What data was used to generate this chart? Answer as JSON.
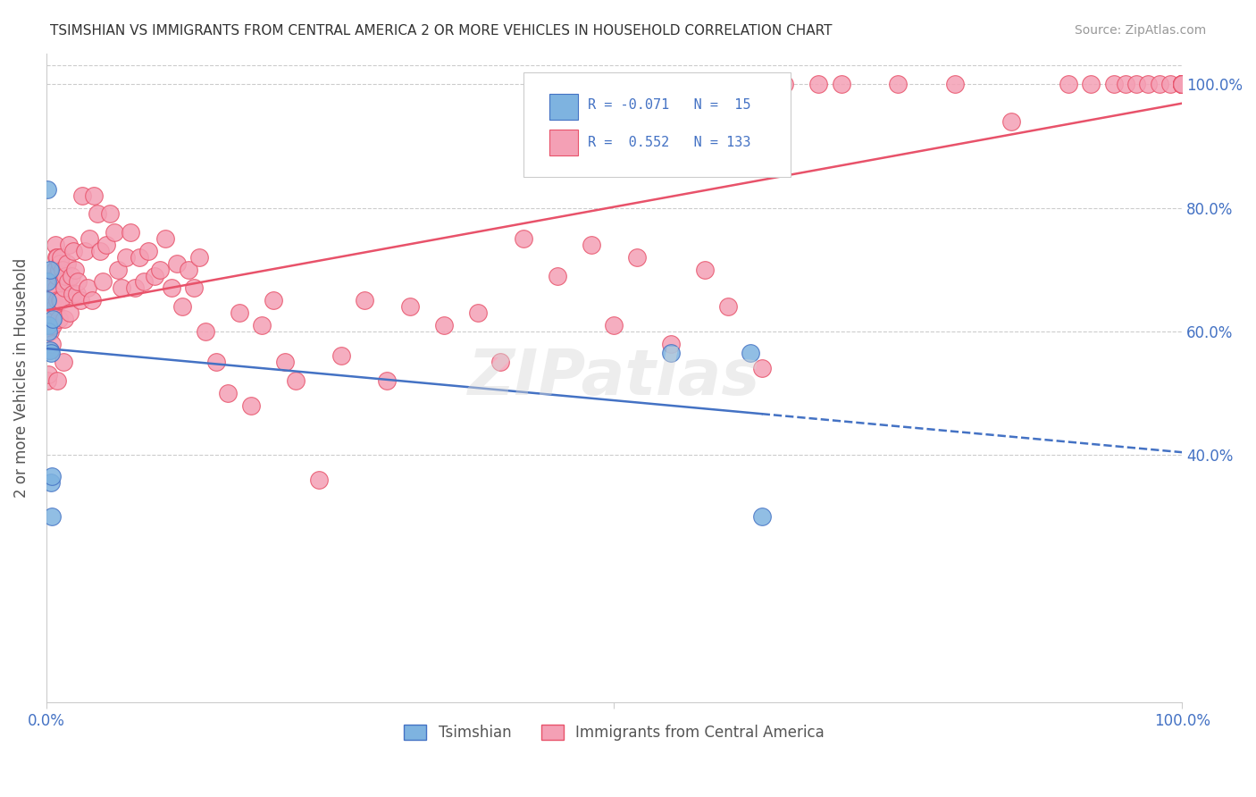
{
  "title": "TSIMSHIAN VS IMMIGRANTS FROM CENTRAL AMERICA 2 OR MORE VEHICLES IN HOUSEHOLD CORRELATION CHART",
  "source": "Source: ZipAtlas.com",
  "ylabel": "2 or more Vehicles in Household",
  "xlim": [
    0.0,
    1.0
  ],
  "ylim": [
    0.0,
    1.05
  ],
  "color_tsimshian": "#7eb3e0",
  "color_immigrants": "#f4a0b5",
  "color_line_tsimshian": "#4472c4",
  "color_line_immigrants": "#e8526a",
  "color_grid": "#cccccc",
  "color_watermark": "#d8d8d8",
  "watermark": "ZIPatlas",
  "background_color": "#ffffff",
  "tsimshian_x": [
    0.001,
    0.001,
    0.001,
    0.002,
    0.002,
    0.003,
    0.003,
    0.004,
    0.004,
    0.005,
    0.005,
    0.006,
    0.55,
    0.62,
    0.63
  ],
  "tsimshian_y": [
    0.83,
    0.68,
    0.65,
    0.61,
    0.6,
    0.7,
    0.57,
    0.565,
    0.355,
    0.365,
    0.3,
    0.62,
    0.565,
    0.565,
    0.3
  ],
  "immigrants_x": [
    0.001,
    0.001,
    0.002,
    0.002,
    0.002,
    0.003,
    0.003,
    0.003,
    0.004,
    0.004,
    0.005,
    0.005,
    0.005,
    0.006,
    0.006,
    0.007,
    0.007,
    0.007,
    0.008,
    0.008,
    0.008,
    0.009,
    0.009,
    0.01,
    0.01,
    0.01,
    0.01,
    0.011,
    0.011,
    0.012,
    0.012,
    0.013,
    0.013,
    0.014,
    0.015,
    0.015,
    0.016,
    0.016,
    0.017,
    0.018,
    0.019,
    0.02,
    0.021,
    0.022,
    0.023,
    0.024,
    0.025,
    0.027,
    0.028,
    0.03,
    0.032,
    0.034,
    0.036,
    0.038,
    0.04,
    0.042,
    0.045,
    0.047,
    0.05,
    0.053,
    0.056,
    0.06,
    0.063,
    0.066,
    0.07,
    0.074,
    0.078,
    0.082,
    0.086,
    0.09,
    0.095,
    0.1,
    0.105,
    0.11,
    0.115,
    0.12,
    0.125,
    0.13,
    0.135,
    0.14,
    0.15,
    0.16,
    0.17,
    0.18,
    0.19,
    0.2,
    0.21,
    0.22,
    0.24,
    0.26,
    0.28,
    0.3,
    0.32,
    0.35,
    0.38,
    0.4,
    0.42,
    0.45,
    0.48,
    0.5,
    0.52,
    0.55,
    0.58,
    0.6,
    0.63,
    0.65,
    0.68,
    0.7,
    0.75,
    0.8,
    0.85,
    0.9,
    0.92,
    0.94,
    0.95,
    0.96,
    0.97,
    0.98,
    0.99,
    1.0,
    1.0,
    1.0,
    1.0,
    1.0,
    1.0,
    1.0,
    1.0,
    1.0,
    1.0,
    1.0,
    1.0,
    1.0,
    1.0
  ],
  "immigrants_y": [
    0.57,
    0.52,
    0.6,
    0.57,
    0.53,
    0.63,
    0.6,
    0.57,
    0.69,
    0.61,
    0.67,
    0.64,
    0.58,
    0.65,
    0.61,
    0.7,
    0.66,
    0.63,
    0.74,
    0.7,
    0.64,
    0.72,
    0.67,
    0.72,
    0.69,
    0.65,
    0.52,
    0.7,
    0.62,
    0.71,
    0.65,
    0.72,
    0.65,
    0.7,
    0.68,
    0.55,
    0.67,
    0.62,
    0.69,
    0.71,
    0.68,
    0.74,
    0.63,
    0.69,
    0.66,
    0.73,
    0.7,
    0.66,
    0.68,
    0.65,
    0.82,
    0.73,
    0.67,
    0.75,
    0.65,
    0.82,
    0.79,
    0.73,
    0.68,
    0.74,
    0.79,
    0.76,
    0.7,
    0.67,
    0.72,
    0.76,
    0.67,
    0.72,
    0.68,
    0.73,
    0.69,
    0.7,
    0.75,
    0.67,
    0.71,
    0.64,
    0.7,
    0.67,
    0.72,
    0.6,
    0.55,
    0.5,
    0.63,
    0.48,
    0.61,
    0.65,
    0.55,
    0.52,
    0.36,
    0.56,
    0.65,
    0.52,
    0.64,
    0.61,
    0.63,
    0.55,
    0.75,
    0.69,
    0.74,
    0.61,
    0.72,
    0.58,
    0.7,
    0.64,
    0.54,
    1.0,
    1.0,
    1.0,
    1.0,
    1.0,
    0.94,
    1.0,
    1.0,
    1.0,
    1.0,
    1.0,
    1.0,
    1.0,
    1.0,
    1.0,
    1.0,
    1.0,
    1.0,
    1.0,
    1.0,
    1.0,
    1.0,
    1.0,
    1.0,
    1.0,
    1.0,
    1.0,
    1.0
  ]
}
